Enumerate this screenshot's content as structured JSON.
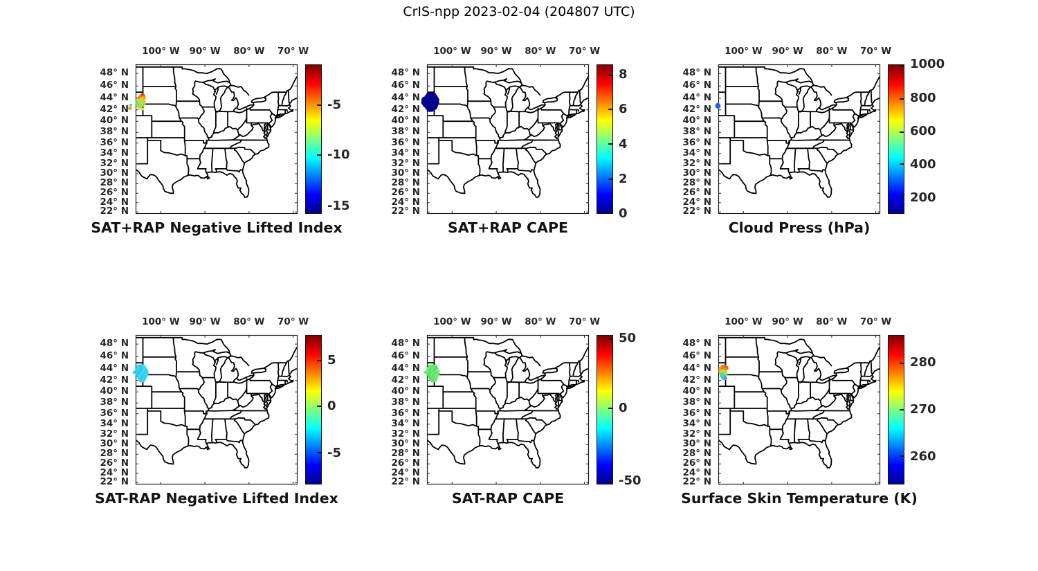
{
  "figure": {
    "title": "CrIS-npp 2023-02-04 (204807 UTC)",
    "background_color": "#ffffff",
    "text_color": "#262626",
    "map_line_color": "#000000"
  },
  "axes": {
    "projection": "mercator",
    "lon_range": [
      -105.7,
      -69.0
    ],
    "lat_range": [
      21.6,
      49.4
    ],
    "lon_ticks": [
      {
        "label": "100° W",
        "lon": -100
      },
      {
        "label": "90° W",
        "lon": -90
      },
      {
        "label": "80° W",
        "lon": -80
      },
      {
        "label": "70° W",
        "lon": -70
      }
    ],
    "lat_ticks": [
      {
        "label": "48° N",
        "lat": 48
      },
      {
        "label": "46° N",
        "lat": 46
      },
      {
        "label": "44° N",
        "lat": 44
      },
      {
        "label": "42° N",
        "lat": 42
      },
      {
        "label": "40° N",
        "lat": 40
      },
      {
        "label": "38° N",
        "lat": 38
      },
      {
        "label": "36° N",
        "lat": 36
      },
      {
        "label": "34° N",
        "lat": 34
      },
      {
        "label": "32° N",
        "lat": 32
      },
      {
        "label": "30° N",
        "lat": 30
      },
      {
        "label": "28° N",
        "lat": 28
      },
      {
        "label": "26° N",
        "lat": 26
      },
      {
        "label": "24° N",
        "lat": 24
      },
      {
        "label": "22° N",
        "lat": 22
      }
    ]
  },
  "colormap": {
    "name": "jet",
    "stops": [
      [
        0,
        "#00008f"
      ],
      [
        0.125,
        "#0000ff"
      ],
      [
        0.375,
        "#00ffff"
      ],
      [
        0.625,
        "#ffff00"
      ],
      [
        0.875,
        "#ff0000"
      ],
      [
        1,
        "#7f0000"
      ]
    ]
  },
  "panels": [
    {
      "id": "sat-plus-rap-nli",
      "row": 0,
      "col": 0,
      "title": "SAT+RAP Negative Lifted Index",
      "colorbar_ticks": [
        {
          "label": "-5",
          "pos": 0.272
        },
        {
          "label": "-10",
          "pos": 0.607
        },
        {
          "label": "-15",
          "pos": 0.95
        }
      ],
      "obs": [
        [
          -104.15,
          44.3,
          4.2,
          "#e1400c"
        ],
        [
          -104.62,
          44.12,
          3.4,
          "#ee7a12"
        ],
        [
          -103.87,
          44.1,
          3.0,
          "#f29114"
        ],
        [
          -104.3,
          43.88,
          2.8,
          "#eecb1e"
        ],
        [
          -105.25,
          43.52,
          2.5,
          "#cde42a"
        ],
        [
          -104.85,
          43.56,
          2.5,
          "#ace03f"
        ],
        [
          -104.45,
          43.5,
          2.5,
          "#dde524"
        ],
        [
          -104.05,
          43.55,
          2.4,
          "#9ade4d"
        ],
        [
          -103.68,
          43.48,
          2.2,
          "#c4e232"
        ],
        [
          -105.35,
          43.15,
          2.5,
          "#54d794"
        ],
        [
          -104.95,
          43.2,
          2.5,
          "#8fdc54"
        ],
        [
          -104.55,
          43.15,
          2.5,
          "#c6e231"
        ],
        [
          -104.15,
          43.2,
          2.4,
          "#a3de48"
        ],
        [
          -103.78,
          43.14,
          2.2,
          "#b9e13a"
        ],
        [
          -105.2,
          42.8,
          2.5,
          "#bfe136"
        ],
        [
          -104.8,
          42.85,
          2.5,
          "#7adb66"
        ],
        [
          -104.4,
          42.8,
          2.4,
          "#b0e03e"
        ],
        [
          -104.0,
          42.84,
          2.2,
          "#98dd4f"
        ],
        [
          -104.95,
          42.5,
          2.4,
          "#8cdc58"
        ],
        [
          -104.55,
          42.45,
          2.3,
          "#aedf41"
        ],
        [
          -104.2,
          42.15,
          2.2,
          "#c9e22e"
        ],
        [
          -106.8,
          42.85,
          2.0,
          "#3ed0b8"
        ],
        [
          -107.0,
          42.3,
          2.6,
          "#f2991d"
        ]
      ]
    },
    {
      "id": "sat-plus-rap-cape",
      "row": 0,
      "col": 1,
      "title": "SAT+RAP CAPE",
      "colorbar_ticks": [
        {
          "label": "8",
          "pos": 0.07
        },
        {
          "label": "6",
          "pos": 0.3
        },
        {
          "label": "4",
          "pos": 0.535
        },
        {
          "label": "2",
          "pos": 0.77
        },
        {
          "label": "0",
          "pos": 1.0
        }
      ],
      "obs": [
        [
          -105.3,
          44.45,
          4.2,
          "#00008f"
        ],
        [
          -104.75,
          44.45,
          4.2,
          "#00008f"
        ],
        [
          -104.2,
          44.45,
          4.2,
          "#00008f"
        ],
        [
          -105.6,
          44.1,
          4.6,
          "#00008f"
        ],
        [
          -105.05,
          44.1,
          4.6,
          "#00008f"
        ],
        [
          -104.5,
          44.1,
          4.6,
          "#00008f"
        ],
        [
          -103.95,
          44.1,
          4.6,
          "#00008f"
        ],
        [
          -106.25,
          43.7,
          4.6,
          "#00008f"
        ],
        [
          -105.7,
          43.7,
          4.6,
          "#00008f"
        ],
        [
          -105.15,
          43.7,
          4.6,
          "#00008f"
        ],
        [
          -104.6,
          43.7,
          4.6,
          "#00008f"
        ],
        [
          -104.05,
          43.7,
          4.6,
          "#00008f"
        ],
        [
          -103.6,
          43.7,
          4.4,
          "#00008f"
        ],
        [
          -106.3,
          43.3,
          4.6,
          "#00008f"
        ],
        [
          -105.75,
          43.3,
          4.6,
          "#00008f"
        ],
        [
          -105.2,
          43.3,
          4.6,
          "#00008f"
        ],
        [
          -104.65,
          43.3,
          4.6,
          "#00008f"
        ],
        [
          -104.1,
          43.3,
          4.6,
          "#00008f"
        ],
        [
          -103.6,
          43.3,
          4.4,
          "#00008f"
        ],
        [
          -105.95,
          42.9,
          4.4,
          "#00008f"
        ],
        [
          -105.4,
          42.9,
          4.4,
          "#00008f"
        ],
        [
          -104.85,
          42.9,
          4.4,
          "#00008f"
        ],
        [
          -104.3,
          42.9,
          4.4,
          "#00008f"
        ],
        [
          -103.8,
          42.9,
          4.2,
          "#00008f"
        ],
        [
          -105.55,
          42.5,
          4.1,
          "#00008f"
        ],
        [
          -105.0,
          42.5,
          4.1,
          "#00008f"
        ],
        [
          -104.45,
          42.5,
          4.1,
          "#00008f"
        ],
        [
          -103.95,
          42.5,
          4.0,
          "#00008f"
        ],
        [
          -105.2,
          42.1,
          3.7,
          "#00008f"
        ],
        [
          -104.65,
          42.1,
          3.7,
          "#00008f"
        ]
      ]
    },
    {
      "id": "cloud-press",
      "row": 0,
      "col": 2,
      "title": "Cloud Press (hPa)",
      "colorbar_ticks": [
        {
          "label": "1000",
          "pos": 0.0
        },
        {
          "label": "800",
          "pos": 0.228
        },
        {
          "label": "600",
          "pos": 0.451
        },
        {
          "label": "400",
          "pos": 0.67
        },
        {
          "label": "200",
          "pos": 0.893
        }
      ],
      "obs": [
        [
          -105.8,
          42.7,
          4.0,
          "#2465dc"
        ]
      ]
    },
    {
      "id": "sat-minus-rap-nli",
      "row": 1,
      "col": 0,
      "title": "SAT-RAP Negative Lifted Index",
      "colorbar_ticks": [
        {
          "label": "5",
          "pos": 0.17
        },
        {
          "label": "0",
          "pos": 0.475
        },
        {
          "label": "-5",
          "pos": 0.79
        }
      ],
      "obs": [
        [
          -105.0,
          44.35,
          3.3,
          "#38d6ee"
        ],
        [
          -104.45,
          44.35,
          3.3,
          "#27c2e9"
        ],
        [
          -103.9,
          44.35,
          3.3,
          "#45dcf1"
        ],
        [
          -105.3,
          44.0,
          3.3,
          "#2fd0ec"
        ],
        [
          -104.75,
          44.0,
          3.3,
          "#3ad7ef"
        ],
        [
          -104.2,
          44.0,
          3.3,
          "#25bfe8"
        ],
        [
          -103.65,
          44.0,
          3.3,
          "#40daf0"
        ],
        [
          -105.45,
          43.6,
          3.3,
          "#2ccbeb"
        ],
        [
          -104.9,
          43.6,
          3.3,
          "#38d6ee"
        ],
        [
          -104.35,
          43.6,
          3.3,
          "#2ac6ea"
        ],
        [
          -103.8,
          43.6,
          3.3,
          "#42dbf1"
        ],
        [
          -103.3,
          43.6,
          3.2,
          "#30d1ed"
        ],
        [
          -105.35,
          43.2,
          3.3,
          "#36d4ee"
        ],
        [
          -104.8,
          43.2,
          3.3,
          "#27c2e9"
        ],
        [
          -104.25,
          43.2,
          3.3,
          "#3fd9f0"
        ],
        [
          -103.7,
          43.2,
          3.3,
          "#2ed0ec"
        ],
        [
          -103.25,
          43.2,
          3.2,
          "#39d6ef"
        ],
        [
          -105.1,
          42.8,
          3.3,
          "#2bc9eb"
        ],
        [
          -104.55,
          42.8,
          3.3,
          "#41daf1"
        ],
        [
          -104.0,
          42.8,
          3.3,
          "#2fd0ed"
        ],
        [
          -103.5,
          42.8,
          3.2,
          "#35d3ee"
        ],
        [
          -104.8,
          42.4,
          3.2,
          "#3cd8f0"
        ],
        [
          -104.25,
          42.4,
          3.2,
          "#29c5ea"
        ],
        [
          -103.75,
          42.4,
          3.2,
          "#33d2ee"
        ],
        [
          -104.5,
          42.05,
          3.0,
          "#2ecfec"
        ],
        [
          -103.95,
          42.05,
          3.0,
          "#38d5ef"
        ],
        [
          -106.05,
          43.4,
          2.2,
          "#2fcfec"
        ]
      ]
    },
    {
      "id": "sat-minus-rap-cape",
      "row": 1,
      "col": 1,
      "title": "SAT-RAP CAPE",
      "colorbar_ticks": [
        {
          "label": "50",
          "pos": 0.025
        },
        {
          "label": "0",
          "pos": 0.49
        },
        {
          "label": "-50",
          "pos": 0.975
        }
      ],
      "obs": [
        [
          -105.0,
          44.35,
          3.3,
          "#5ce665"
        ],
        [
          -104.45,
          44.35,
          3.3,
          "#6ee976"
        ],
        [
          -103.9,
          44.35,
          3.3,
          "#52e35c"
        ],
        [
          -105.3,
          44.0,
          3.3,
          "#79eb81"
        ],
        [
          -104.75,
          44.0,
          3.3,
          "#60e76a"
        ],
        [
          -104.2,
          44.0,
          3.3,
          "#6ae973"
        ],
        [
          -103.65,
          44.0,
          3.3,
          "#55e45f"
        ],
        [
          -105.45,
          43.6,
          3.3,
          "#74ea7c"
        ],
        [
          -104.9,
          43.6,
          3.3,
          "#5ee667"
        ],
        [
          -104.35,
          43.6,
          3.3,
          "#68e871"
        ],
        [
          -103.8,
          43.6,
          3.3,
          "#50e25a"
        ],
        [
          -103.3,
          43.6,
          3.2,
          "#7ceb84"
        ],
        [
          -105.35,
          43.2,
          3.3,
          "#63e76c"
        ],
        [
          -104.8,
          43.2,
          3.3,
          "#58e562"
        ],
        [
          -104.25,
          43.2,
          3.3,
          "#71e979"
        ],
        [
          -103.7,
          43.2,
          3.3,
          "#5ce665"
        ],
        [
          -103.25,
          43.2,
          3.2,
          "#66e86f"
        ],
        [
          -105.1,
          42.8,
          3.3,
          "#54e35e"
        ],
        [
          -104.55,
          42.8,
          3.3,
          "#6ce974"
        ],
        [
          -104.0,
          42.8,
          3.3,
          "#5fe669"
        ],
        [
          -103.5,
          42.8,
          3.2,
          "#78eb80"
        ],
        [
          -104.8,
          42.4,
          3.2,
          "#57e461"
        ],
        [
          -104.25,
          42.4,
          3.2,
          "#62e76b"
        ],
        [
          -103.75,
          42.4,
          3.2,
          "#6fe977"
        ],
        [
          -104.5,
          42.05,
          3.0,
          "#5ae463"
        ],
        [
          -103.95,
          42.05,
          3.0,
          "#65e86e"
        ],
        [
          -106.05,
          43.4,
          2.2,
          "#60e76a"
        ]
      ]
    },
    {
      "id": "surface-skin-temp",
      "row": 1,
      "col": 2,
      "title": "Surface Skin Temperature (K)",
      "colorbar_ticks": [
        {
          "label": "280",
          "pos": 0.185
        },
        {
          "label": "270",
          "pos": 0.5
        },
        {
          "label": "260",
          "pos": 0.815
        }
      ],
      "obs": [
        [
          -104.75,
          44.3,
          3.2,
          "#f28419"
        ],
        [
          -104.25,
          44.35,
          3.2,
          "#ef6e13"
        ],
        [
          -103.85,
          44.15,
          3.0,
          "#ed5f10"
        ],
        [
          -105.1,
          44.0,
          3.2,
          "#f49a20"
        ],
        [
          -104.6,
          43.95,
          3.2,
          "#f07814"
        ],
        [
          -104.1,
          43.85,
          3.0,
          "#f18f17"
        ],
        [
          -105.2,
          43.6,
          3.0,
          "#efb327"
        ],
        [
          -104.7,
          43.55,
          3.0,
          "#d8e027"
        ],
        [
          -104.2,
          43.5,
          3.0,
          "#b7e13c"
        ],
        [
          -105.05,
          43.2,
          3.0,
          "#8edc55"
        ],
        [
          -104.55,
          43.15,
          3.0,
          "#6fd974"
        ],
        [
          -104.05,
          43.1,
          2.8,
          "#a5de48"
        ],
        [
          -104.85,
          42.8,
          3.0,
          "#4cd5a0"
        ],
        [
          -104.35,
          42.75,
          2.8,
          "#3fd2c4"
        ],
        [
          -104.6,
          42.45,
          2.8,
          "#35c4e5"
        ],
        [
          -104.1,
          42.4,
          2.5,
          "#2e9ce5"
        ]
      ]
    }
  ],
  "chart_data": [
    {
      "type": "scatter",
      "subtype": "map-scatter",
      "title": "SAT+RAP Negative Lifted Index",
      "x_axis": {
        "label_ticks": [
          "100° W",
          "90° W",
          "80° W",
          "70° W"
        ],
        "range": [
          -105.7,
          -69.0
        ]
      },
      "y_axis": {
        "label_ticks": [
          "48° N",
          "46° N",
          "44° N",
          "42° N",
          "40° N",
          "38° N",
          "36° N",
          "34° N",
          "32° N",
          "30° N",
          "28° N",
          "26° N",
          "24° N",
          "22° N"
        ],
        "range": [
          21.6,
          49.4
        ]
      },
      "colorbar": {
        "ticks": [
          -5,
          -10,
          -15
        ],
        "clim": [
          -16,
          -1
        ],
        "colormap": "jet"
      },
      "obs_cluster": {
        "center_lon": -104.5,
        "center_lat": 43.3,
        "approx_value_range": [
          -9,
          -3
        ]
      }
    },
    {
      "type": "scatter",
      "subtype": "map-scatter",
      "title": "SAT+RAP CAPE",
      "colorbar": {
        "ticks": [
          0,
          2,
          4,
          6,
          8
        ],
        "clim": [
          0,
          8.6
        ],
        "colormap": "jet"
      },
      "obs_cluster": {
        "center_lon": -104.9,
        "center_lat": 43.3,
        "approx_value_range": [
          0,
          0.4
        ]
      }
    },
    {
      "type": "scatter",
      "subtype": "map-scatter",
      "title": "Cloud Press (hPa)",
      "colorbar": {
        "ticks": [
          200,
          400,
          600,
          800,
          1000
        ],
        "clim": [
          100,
          1000
        ],
        "colormap": "jet"
      },
      "obs_cluster": {
        "center_lon": -105.8,
        "center_lat": 42.7,
        "approx_value_range": [
          290,
          320
        ]
      }
    },
    {
      "type": "scatter",
      "subtype": "map-scatter",
      "title": "SAT-RAP Negative Lifted Index",
      "colorbar": {
        "ticks": [
          5,
          0,
          -5
        ],
        "clim": [
          -8.5,
          7.8
        ],
        "colormap": "jet"
      },
      "obs_cluster": {
        "center_lon": -104.5,
        "center_lat": 43.2,
        "approx_value_range": [
          -2.5,
          -1.2
        ]
      }
    },
    {
      "type": "scatter",
      "subtype": "map-scatter",
      "title": "SAT-RAP CAPE",
      "colorbar": {
        "ticks": [
          50,
          0,
          -50
        ],
        "clim": [
          -53,
          53
        ],
        "colormap": "jet"
      },
      "obs_cluster": {
        "center_lon": -104.5,
        "center_lat": 43.2,
        "approx_value_range": [
          0,
          6
        ]
      }
    },
    {
      "type": "scatter",
      "subtype": "map-scatter",
      "title": "Surface Skin Temperature (K)",
      "colorbar": {
        "ticks": [
          280,
          270,
          260
        ],
        "clim": [
          254,
          286
        ],
        "colormap": "jet"
      },
      "obs_cluster": {
        "center_lon": -104.5,
        "center_lat": 43.3,
        "approx_value_range": [
          264,
          281
        ]
      }
    }
  ]
}
